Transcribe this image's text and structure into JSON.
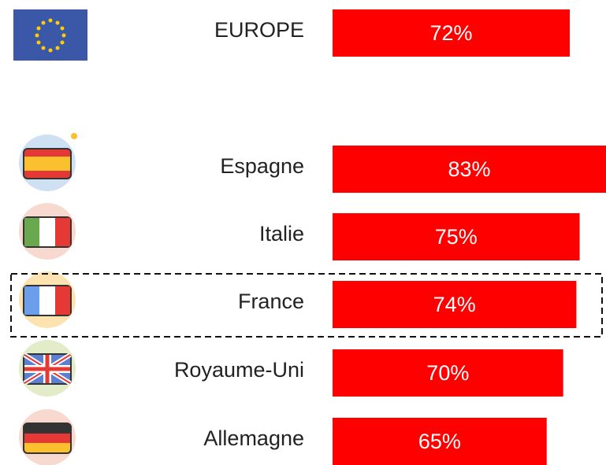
{
  "chart_data": {
    "type": "bar",
    "categories": [
      "EUROPE",
      "Espagne",
      "Italie",
      "France",
      "Royaume-Uni",
      "Allemagne"
    ],
    "values": [
      72,
      83,
      75,
      74,
      70,
      65
    ],
    "value_labels": [
      "72%",
      "83%",
      "75%",
      "74%",
      "70%",
      "65%"
    ],
    "color": "#ff0000"
  }
}
